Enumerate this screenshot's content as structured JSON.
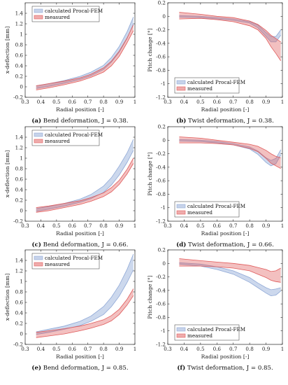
{
  "chart_data": [
    {
      "type": "area",
      "panel": "a",
      "caption_letter": "(a)",
      "caption_text": "Bend deformation, J = 0.38.",
      "xlabel": "Radial position [-]",
      "ylabel": "x-deflection [mm]",
      "xlim": [
        0.3,
        1
      ],
      "ylim": [
        -0.2,
        1.6
      ],
      "xticks": [
        "0.3",
        "0.4",
        "0.5",
        "0.6",
        "0.7",
        "0.8",
        "0.9",
        "1"
      ],
      "yticks": [
        "-0.2",
        "0",
        "0.2",
        "0.4",
        "0.6",
        "0.8",
        "1",
        "1.2",
        "1.4"
      ],
      "legend_position": "top-left",
      "series": [
        {
          "name": "calculated Procal-FEM",
          "color": "#8fa8d6",
          "x": [
            0.37,
            0.45,
            0.55,
            0.65,
            0.72,
            0.8,
            0.85,
            0.9,
            0.95,
            0.99
          ],
          "lower": [
            -0.03,
            0.01,
            0.07,
            0.14,
            0.21,
            0.33,
            0.47,
            0.66,
            0.92,
            1.2
          ],
          "upper": [
            0.02,
            0.06,
            0.12,
            0.2,
            0.28,
            0.41,
            0.56,
            0.77,
            1.05,
            1.33
          ]
        },
        {
          "name": "measured",
          "color": "#e05a5a",
          "x": [
            0.37,
            0.45,
            0.55,
            0.65,
            0.72,
            0.8,
            0.85,
            0.9,
            0.95,
            0.99
          ],
          "lower": [
            -0.06,
            -0.02,
            0.04,
            0.11,
            0.18,
            0.28,
            0.4,
            0.58,
            0.84,
            1.07
          ],
          "upper": [
            0.02,
            0.06,
            0.11,
            0.17,
            0.24,
            0.36,
            0.49,
            0.68,
            0.93,
            1.18
          ]
        }
      ]
    },
    {
      "type": "area",
      "panel": "b",
      "caption_letter": "(b)",
      "caption_text": "Twist deformation, J = 0.38.",
      "xlabel": "Radial position [-]",
      "ylabel": "Pitch change [°]",
      "xlim": [
        0.3,
        1
      ],
      "ylim": [
        -1.2,
        0.2
      ],
      "xticks": [
        "0.3",
        "0.4",
        "0.5",
        "0.6",
        "0.7",
        "0.8",
        "0.9",
        "1"
      ],
      "yticks": [
        "-1.2",
        "-1",
        "-0.8",
        "-0.6",
        "-0.4",
        "-0.2",
        "0",
        "0.2"
      ],
      "legend_position": "bottom-left",
      "series": [
        {
          "name": "calculated Procal-FEM",
          "color": "#8fa8d6",
          "x": [
            0.37,
            0.5,
            0.6,
            0.7,
            0.8,
            0.85,
            0.9,
            0.93,
            0.96,
            0.99
          ],
          "lower": [
            -0.01,
            -0.02,
            -0.04,
            -0.06,
            -0.1,
            -0.17,
            -0.3,
            -0.38,
            -0.38,
            -0.28
          ],
          "upper": [
            0.01,
            0.0,
            -0.02,
            -0.04,
            -0.08,
            -0.13,
            -0.24,
            -0.3,
            -0.3,
            -0.2
          ]
        },
        {
          "name": "measured",
          "color": "#e05a5a",
          "x": [
            0.37,
            0.5,
            0.6,
            0.7,
            0.8,
            0.85,
            0.9,
            0.93,
            0.96,
            0.99
          ],
          "lower": [
            -0.04,
            -0.03,
            -0.05,
            -0.08,
            -0.14,
            -0.2,
            -0.33,
            -0.45,
            -0.55,
            -0.66
          ],
          "upper": [
            0.06,
            0.03,
            0.0,
            -0.02,
            -0.07,
            -0.12,
            -0.21,
            -0.28,
            -0.33,
            -0.38
          ]
        }
      ]
    },
    {
      "type": "area",
      "panel": "c",
      "caption_letter": "(c)",
      "caption_text": "Bend deformation, J = 0.66.",
      "xlabel": "Radial position [-]",
      "ylabel": "x-deflection [mm]",
      "xlim": [
        0.3,
        1
      ],
      "ylim": [
        -0.2,
        1.6
      ],
      "xticks": [
        "0.3",
        "0.4",
        "0.5",
        "0.6",
        "0.7",
        "0.8",
        "0.9",
        "1"
      ],
      "yticks": [
        "-0.2",
        "0",
        "0.2",
        "0.4",
        "0.6",
        "0.8",
        "1",
        "1.2",
        "1.4"
      ],
      "legend_position": "top-left",
      "series": [
        {
          "name": "calculated Procal-FEM",
          "color": "#8fa8d6",
          "x": [
            0.37,
            0.45,
            0.55,
            0.65,
            0.72,
            0.8,
            0.85,
            0.9,
            0.95,
            0.99
          ],
          "lower": [
            -0.01,
            0.03,
            0.09,
            0.16,
            0.23,
            0.35,
            0.49,
            0.68,
            0.92,
            1.15
          ],
          "upper": [
            0.04,
            0.08,
            0.14,
            0.22,
            0.31,
            0.47,
            0.63,
            0.85,
            1.1,
            1.36
          ]
        },
        {
          "name": "measured",
          "color": "#e05a5a",
          "x": [
            0.37,
            0.45,
            0.55,
            0.65,
            0.72,
            0.8,
            0.85,
            0.9,
            0.95,
            0.99
          ],
          "lower": [
            -0.03,
            0.0,
            0.06,
            0.12,
            0.18,
            0.27,
            0.36,
            0.5,
            0.7,
            0.9
          ],
          "upper": [
            0.06,
            0.09,
            0.14,
            0.19,
            0.25,
            0.34,
            0.44,
            0.58,
            0.79,
            1.0
          ]
        }
      ]
    },
    {
      "type": "area",
      "panel": "d",
      "caption_letter": "(d)",
      "caption_text": "Twist deformation, J = 0.66.",
      "xlabel": "Radial position [-]",
      "ylabel": "Pitch change [°]",
      "xlim": [
        0.3,
        1
      ],
      "ylim": [
        -1.2,
        0.2
      ],
      "xticks": [
        "0.3",
        "0.4",
        "0.5",
        "0.6",
        "0.7",
        "0.8",
        "0.9",
        "1"
      ],
      "yticks": [
        "-1.2",
        "-1",
        "-0.8",
        "-0.6",
        "-0.4",
        "-0.2",
        "0",
        "0.2"
      ],
      "legend_position": "bottom-left",
      "series": [
        {
          "name": "calculated Procal-FEM",
          "color": "#8fa8d6",
          "x": [
            0.37,
            0.5,
            0.6,
            0.7,
            0.8,
            0.85,
            0.9,
            0.93,
            0.96,
            0.99
          ],
          "lower": [
            -0.01,
            -0.02,
            -0.04,
            -0.07,
            -0.13,
            -0.21,
            -0.33,
            -0.38,
            -0.35,
            -0.22
          ],
          "upper": [
            0.01,
            0.0,
            -0.02,
            -0.05,
            -0.1,
            -0.16,
            -0.26,
            -0.3,
            -0.27,
            -0.14
          ]
        },
        {
          "name": "measured",
          "color": "#e05a5a",
          "x": [
            0.37,
            0.5,
            0.6,
            0.7,
            0.8,
            0.85,
            0.9,
            0.93,
            0.96,
            0.99
          ],
          "lower": [
            -0.04,
            -0.04,
            -0.05,
            -0.07,
            -0.12,
            -0.17,
            -0.27,
            -0.34,
            -0.38,
            -0.42
          ],
          "upper": [
            0.05,
            0.03,
            0.0,
            -0.03,
            -0.06,
            -0.09,
            -0.15,
            -0.2,
            -0.24,
            -0.26
          ]
        }
      ]
    },
    {
      "type": "area",
      "panel": "e",
      "caption_letter": "(e)",
      "caption_text": "Bend deformation, J = 0.85.",
      "xlabel": "Radial position [-]",
      "ylabel": "x-deflection [mm]",
      "xlim": [
        0.3,
        1
      ],
      "ylim": [
        -0.2,
        1.6
      ],
      "xticks": [
        "0.3",
        "0.4",
        "0.5",
        "0.6",
        "0.7",
        "0.8",
        "0.9",
        "1"
      ],
      "yticks": [
        "-0.2",
        "0",
        "0.2",
        "0.4",
        "0.6",
        "0.8",
        "1",
        "1.2",
        "1.4"
      ],
      "legend_position": "top-left",
      "series": [
        {
          "name": "calculated Procal-FEM",
          "color": "#8fa8d6",
          "x": [
            0.37,
            0.45,
            0.55,
            0.65,
            0.72,
            0.8,
            0.85,
            0.9,
            0.95,
            0.99
          ],
          "lower": [
            -0.01,
            0.03,
            0.09,
            0.16,
            0.24,
            0.37,
            0.52,
            0.72,
            0.98,
            1.22
          ],
          "upper": [
            0.04,
            0.09,
            0.15,
            0.24,
            0.34,
            0.52,
            0.7,
            0.93,
            1.23,
            1.52
          ]
        },
        {
          "name": "measured",
          "color": "#e05a5a",
          "x": [
            0.37,
            0.45,
            0.55,
            0.65,
            0.72,
            0.8,
            0.85,
            0.9,
            0.95,
            0.99
          ],
          "lower": [
            -0.07,
            -0.04,
            0.0,
            0.06,
            0.11,
            0.18,
            0.25,
            0.37,
            0.55,
            0.73
          ],
          "upper": [
            0.03,
            0.06,
            0.1,
            0.15,
            0.2,
            0.27,
            0.35,
            0.47,
            0.66,
            0.86
          ]
        }
      ]
    },
    {
      "type": "area",
      "panel": "f",
      "caption_letter": "(f)",
      "caption_text": "Twist deformation, J = 0.85.",
      "xlabel": "Radial position [-]",
      "ylabel": "Pitch change [°]",
      "xlim": [
        0.3,
        1
      ],
      "ylim": [
        -1.2,
        0.2
      ],
      "xticks": [
        "0.3",
        "0.4",
        "0.5",
        "0.6",
        "0.7",
        "0.8",
        "0.9",
        "1"
      ],
      "yticks": [
        "-1.2",
        "-1",
        "-0.8",
        "-0.6",
        "-0.4",
        "-0.2",
        "0",
        "0.2"
      ],
      "legend_position": "bottom-left",
      "series": [
        {
          "name": "calculated Procal-FEM",
          "color": "#8fa8d6",
          "x": [
            0.37,
            0.5,
            0.6,
            0.7,
            0.8,
            0.85,
            0.9,
            0.93,
            0.96,
            0.99
          ],
          "lower": [
            -0.01,
            -0.04,
            -0.09,
            -0.16,
            -0.28,
            -0.36,
            -0.44,
            -0.48,
            -0.47,
            -0.41
          ],
          "upper": [
            0.01,
            -0.01,
            -0.05,
            -0.11,
            -0.21,
            -0.29,
            -0.36,
            -0.39,
            -0.38,
            -0.36
          ]
        },
        {
          "name": "measured",
          "color": "#e05a5a",
          "x": [
            0.37,
            0.5,
            0.6,
            0.7,
            0.8,
            0.85,
            0.9,
            0.93,
            0.96,
            0.99
          ],
          "lower": [
            -0.04,
            -0.04,
            -0.05,
            -0.07,
            -0.11,
            -0.16,
            -0.21,
            -0.25,
            -0.27,
            -0.28
          ],
          "upper": [
            0.07,
            0.04,
            0.02,
            0.0,
            -0.03,
            -0.06,
            -0.09,
            -0.12,
            -0.11,
            -0.07
          ]
        }
      ]
    }
  ]
}
